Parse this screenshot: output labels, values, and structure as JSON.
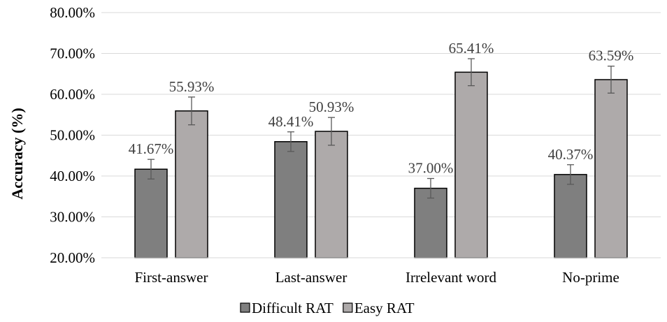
{
  "chart_data": {
    "type": "bar",
    "ylabel": "Accuracy (%)",
    "xlabel": "",
    "ylim": [
      20,
      80
    ],
    "yticks": [
      20,
      30,
      40,
      50,
      60,
      70,
      80
    ],
    "ytick_labels": [
      "20.00%",
      "30.00%",
      "40.00%",
      "50.00%",
      "60.00%",
      "70.00%",
      "80.00%"
    ],
    "grid": true,
    "legend_position": "bottom",
    "categories": [
      "First-answer",
      "Last-answer",
      "Irrelevant word",
      "No-prime"
    ],
    "series": [
      {
        "name": "Difficult RAT",
        "color": "#7f7f7f",
        "values": [
          41.67,
          48.41,
          37.0,
          40.37
        ],
        "labels": [
          "41.67%",
          "48.41%",
          "37.00%",
          "40.37%"
        ],
        "errors": [
          2.4,
          2.4,
          2.4,
          2.4
        ]
      },
      {
        "name": "Easy RAT",
        "color": "#aeaaaa",
        "values": [
          55.93,
          50.93,
          65.41,
          63.59
        ],
        "labels": [
          "55.93%",
          "50.93%",
          "65.41%",
          "63.59%"
        ],
        "errors": [
          3.4,
          3.4,
          3.3,
          3.3
        ]
      }
    ]
  }
}
